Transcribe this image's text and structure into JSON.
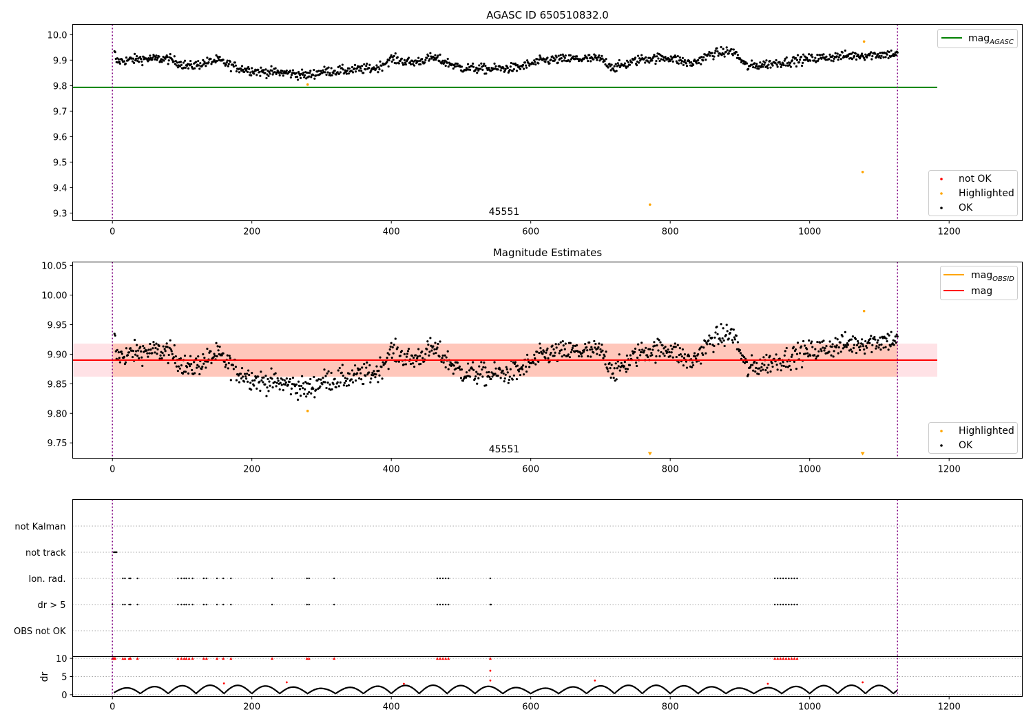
{
  "chart_data": [
    {
      "type": "scatter",
      "title": "AGASC ID 650510832.0",
      "xlim": [
        -57,
        1305
      ],
      "ylim": [
        9.27,
        10.04
      ],
      "xticks": [
        "0",
        "200",
        "400",
        "600",
        "800",
        "1000",
        "1200"
      ],
      "yticks": [
        "9.3",
        "9.4",
        "9.5",
        "9.6",
        "9.7",
        "9.8",
        "9.9",
        "10.0"
      ],
      "hlines": [
        {
          "name": "mag_AGASC",
          "y": 9.793,
          "color": "#008000"
        }
      ],
      "vlines": [
        0,
        1126
      ],
      "vline_color": "#800080",
      "annotation": "45551",
      "legend_lines": {
        "prefix": "mag",
        "sub": "AGASC",
        "location": "upper right"
      },
      "legend_points": {
        "items": [
          "not OK",
          "Highlighted",
          "OK"
        ],
        "location": "lower right"
      },
      "colors": {
        "ok": "#000000",
        "highlighted": "#FFA500",
        "not_ok": "#FF0000"
      },
      "series": [
        {
          "name": "OK",
          "trend": [
            [
              5,
              9.895
            ],
            [
              40,
              9.905
            ],
            [
              80,
              9.905
            ],
            [
              110,
              9.875
            ],
            [
              150,
              9.9
            ],
            [
              180,
              9.87
            ],
            [
              210,
              9.855
            ],
            [
              250,
              9.85
            ],
            [
              280,
              9.84
            ],
            [
              300,
              9.855
            ],
            [
              340,
              9.86
            ],
            [
              380,
              9.87
            ],
            [
              400,
              9.905
            ],
            [
              430,
              9.89
            ],
            [
              460,
              9.91
            ],
            [
              500,
              9.87
            ],
            [
              540,
              9.865
            ],
            [
              580,
              9.87
            ],
            [
              620,
              9.9
            ],
            [
              660,
              9.905
            ],
            [
              700,
              9.905
            ],
            [
              720,
              9.87
            ],
            [
              760,
              9.905
            ],
            [
              800,
              9.91
            ],
            [
              830,
              9.885
            ],
            [
              860,
              9.925
            ],
            [
              890,
              9.935
            ],
            [
              910,
              9.875
            ],
            [
              940,
              9.885
            ],
            [
              970,
              9.895
            ],
            [
              1000,
              9.905
            ],
            [
              1040,
              9.915
            ],
            [
              1080,
              9.92
            ],
            [
              1126,
              9.925
            ]
          ],
          "scatter": 0.018
        },
        {
          "name": "Highlighted",
          "points": [
            [
              280,
              9.804
            ],
            [
              771,
              9.333
            ],
            [
              1076,
              9.461
            ],
            [
              1078,
              9.973
            ]
          ]
        }
      ]
    },
    {
      "type": "scatter",
      "title": "Magnitude Estimates",
      "xlim": [
        -57,
        1305
      ],
      "ylim": [
        9.724,
        10.056
      ],
      "xticks": [
        "0",
        "200",
        "400",
        "600",
        "800",
        "1000",
        "1200"
      ],
      "yticks": [
        "9.75",
        "9.80",
        "9.85",
        "9.90",
        "9.95",
        "10.00",
        "10.05"
      ],
      "hlines": [
        {
          "name": "mag",
          "y": 9.89,
          "color": "#FF0000",
          "x": [
            -57,
            1183
          ]
        }
      ],
      "bands": [
        {
          "y": [
            9.862,
            9.918
          ],
          "x": [
            -57,
            1183
          ],
          "color": "#FFB6C1",
          "opacity": 0.4
        },
        {
          "y": [
            9.862,
            9.918
          ],
          "x": [
            0,
            1126
          ],
          "color": "#FFA07A",
          "opacity": 0.4
        }
      ],
      "vlines": [
        0,
        1126
      ],
      "vline_color": "#800080",
      "annotation": "45551",
      "legend_lines": {
        "items": [
          {
            "prefix": "mag",
            "sub": "OBSID",
            "color": "#FFA500"
          },
          {
            "prefix": "mag",
            "sub": "",
            "color": "#FF0000"
          }
        ],
        "location": "upper right"
      },
      "legend_points": {
        "items": [
          "Highlighted",
          "OK"
        ],
        "location": "lower right"
      },
      "series": [
        {
          "name": "OK",
          "same_as": "top"
        },
        {
          "name": "Highlighted",
          "points": [
            [
              280,
              9.804
            ],
            [
              1078,
              9.973
            ]
          ]
        },
        {
          "name": "Highlighted (below range)",
          "points": [
            [
              771,
              9.724
            ],
            [
              1076,
              9.724
            ]
          ]
        }
      ]
    },
    {
      "type": "scatter",
      "title": "",
      "xlim": [
        -57,
        1305
      ],
      "xticks": [
        "0",
        "200",
        "400",
        "600",
        "800",
        "1000",
        "1200"
      ],
      "flag_rows": [
        "not Kalman",
        "not track",
        "Ion. rad.",
        "dr > 5",
        "OBS not OK"
      ],
      "flags": {
        "not track": [
          2,
          3,
          4,
          5,
          6
        ],
        "Ion. rad.": [
          15,
          18,
          24,
          26,
          36,
          94,
          99,
          103,
          106,
          110,
          115,
          131,
          135,
          150,
          159,
          170,
          229,
          279,
          282,
          318,
          466,
          470,
          474,
          478,
          482,
          542,
          950,
          954,
          958,
          962,
          966,
          970,
          974,
          978,
          982
        ],
        "dr > 5": [
          0,
          15,
          18,
          24,
          26,
          36,
          94,
          99,
          103,
          106,
          110,
          115,
          131,
          135,
          150,
          159,
          170,
          229,
          279,
          282,
          318,
          466,
          470,
          474,
          478,
          482,
          542,
          543,
          950,
          954,
          958,
          962,
          966,
          970,
          974,
          978,
          982
        ]
      },
      "dr_ylabel": "dr",
      "dr_yticks": [
        "0",
        "5",
        "10"
      ],
      "dr_ylim": [
        -0.5,
        10.5
      ],
      "dr_clipped": [
        0,
        1,
        2,
        3,
        4,
        15,
        18,
        24,
        26,
        36,
        94,
        99,
        103,
        106,
        110,
        115,
        131,
        135,
        150,
        159,
        170,
        229,
        279,
        282,
        318,
        466,
        470,
        474,
        478,
        482,
        542,
        950,
        954,
        958,
        962,
        966,
        970,
        974,
        978,
        982
      ],
      "dr_red": [
        [
          160,
          3.1
        ],
        [
          250,
          3.4
        ],
        [
          418,
          3.0
        ],
        [
          542,
          6.6
        ],
        [
          542,
          3.9
        ],
        [
          692,
          3.9
        ],
        [
          940,
          3.0
        ],
        [
          1076,
          3.4
        ]
      ],
      "dr_cycle": {
        "period": 40,
        "min": 0.3,
        "max": 2.6
      }
    }
  ]
}
